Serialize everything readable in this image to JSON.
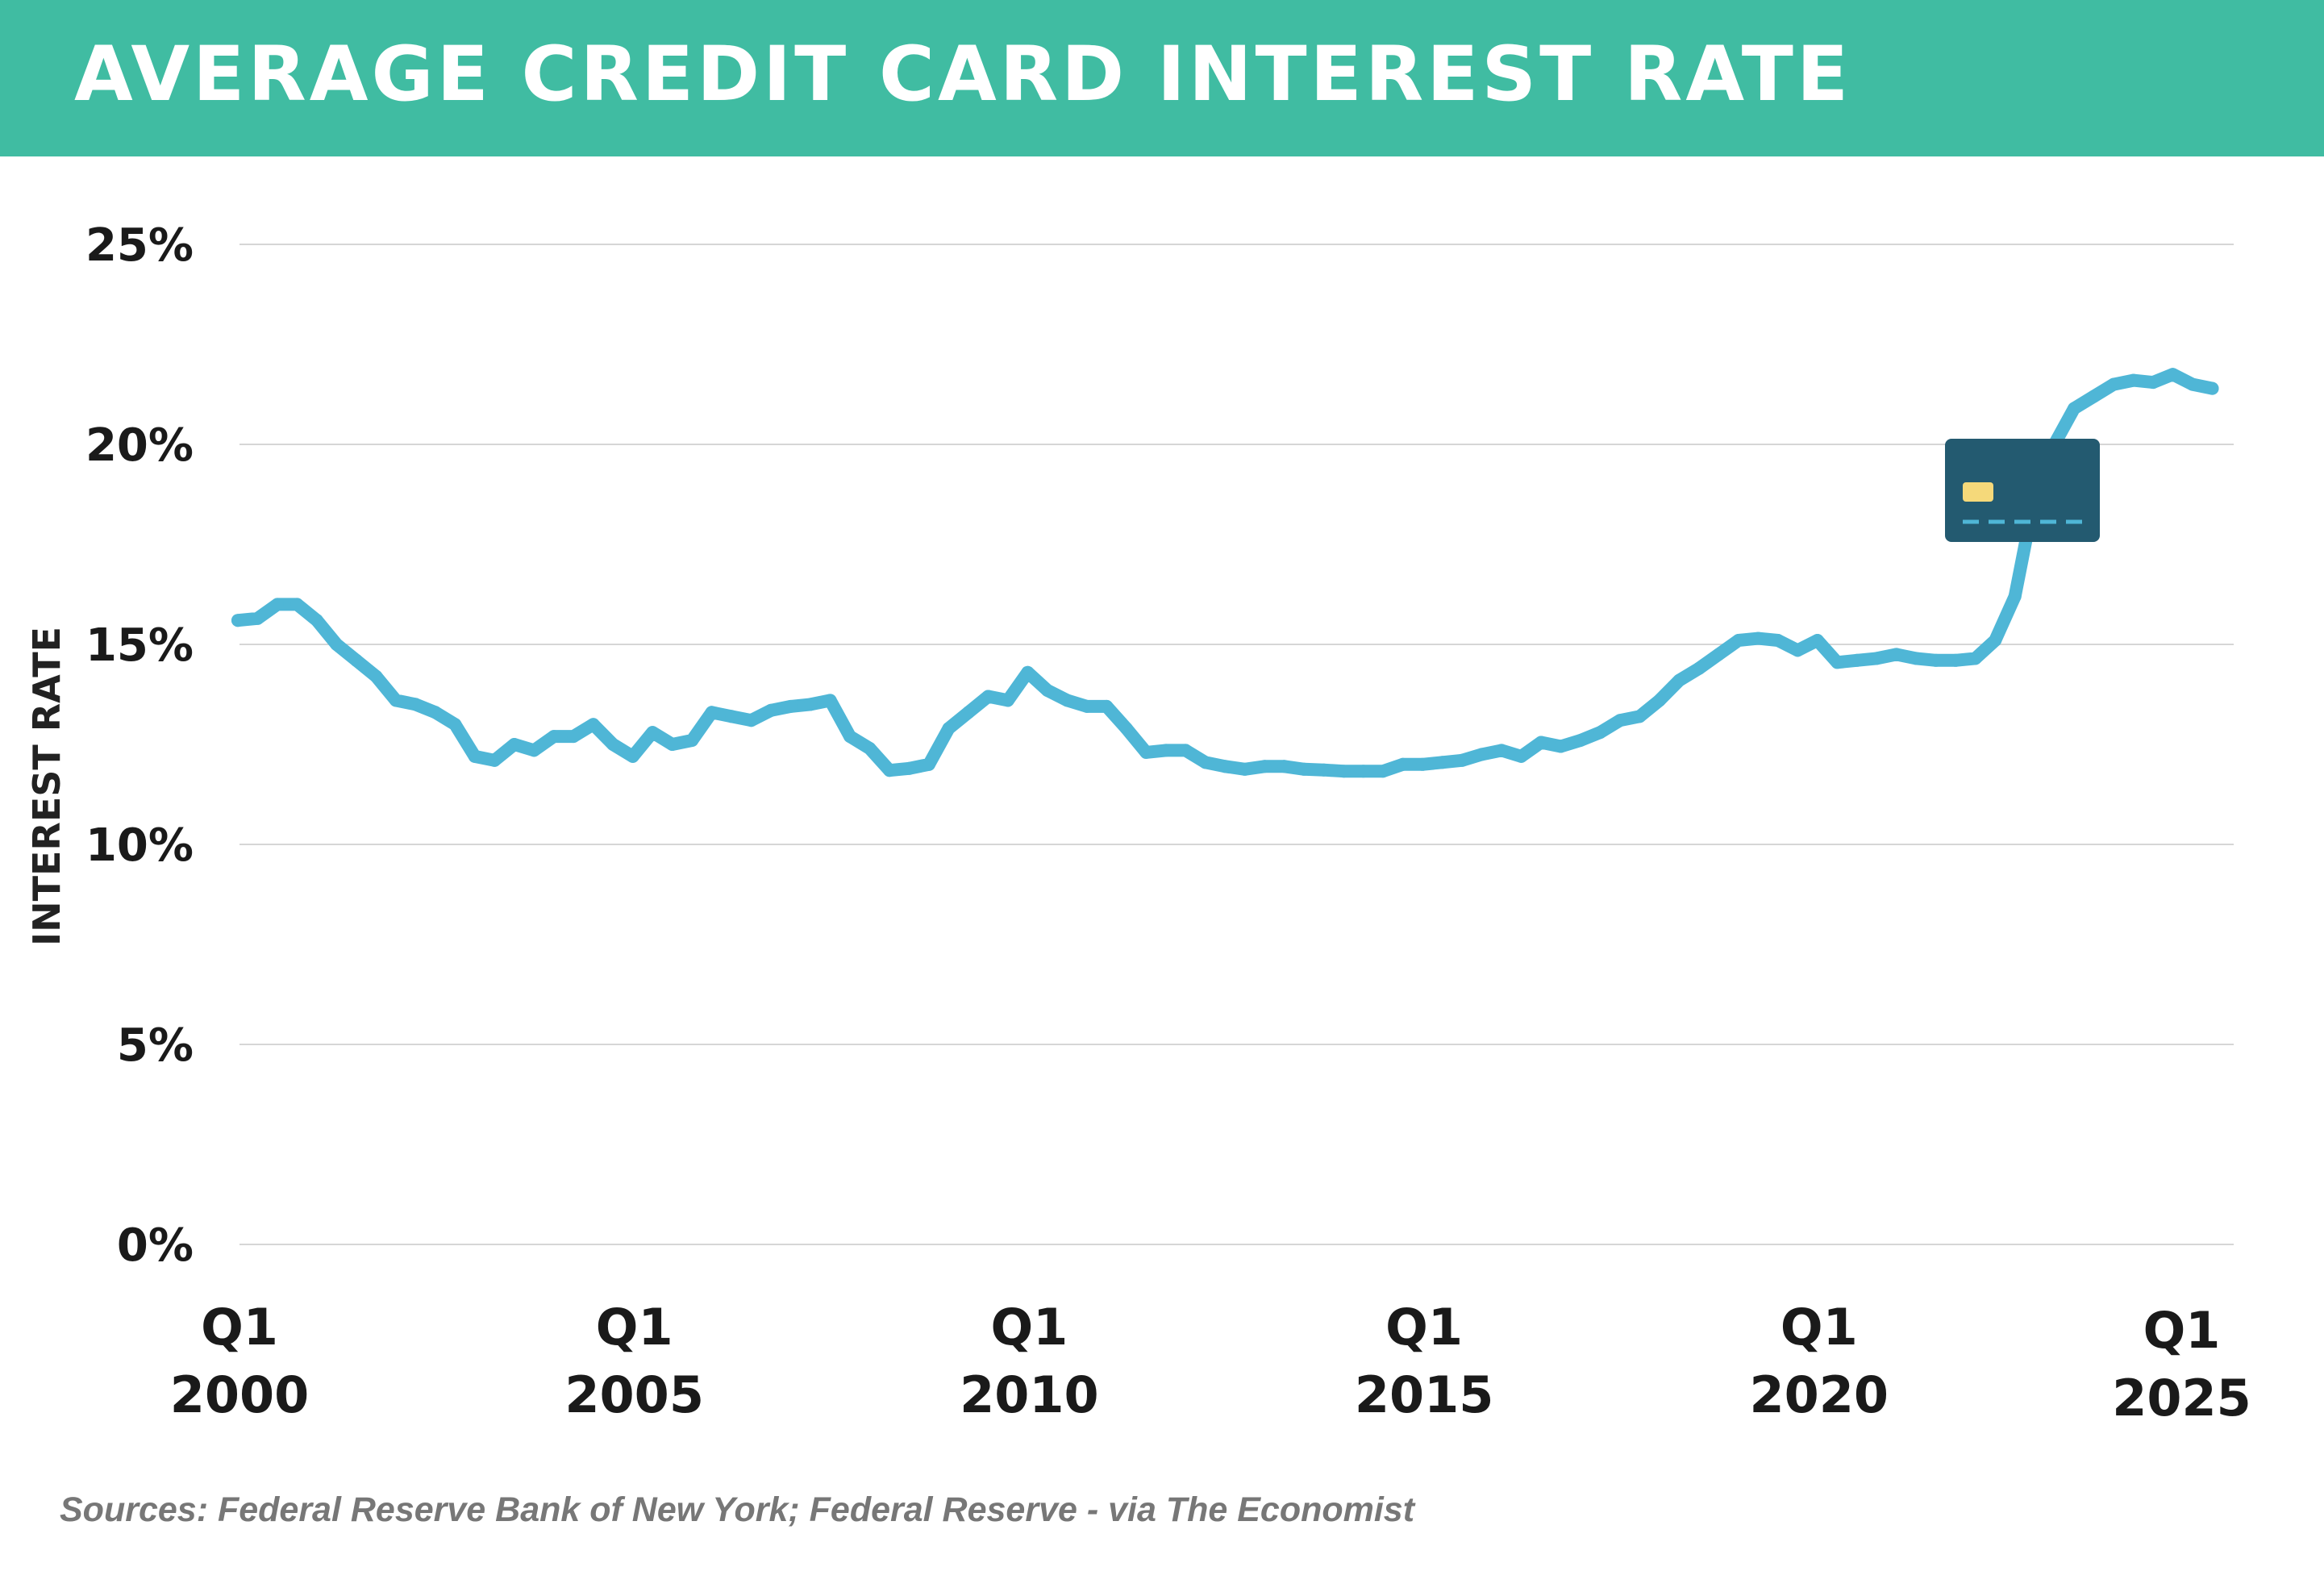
{
  "header": {
    "title": "AVERAGE CREDIT CARD INTEREST RATE"
  },
  "footer": {
    "source": "Sources: Federal Reserve Bank of New York; Federal Reserve - via The Economist"
  },
  "icons": {
    "card": "credit-card-icon"
  },
  "colors": {
    "banner": "#40bca2",
    "line": "#4fb6d6",
    "card_body": "#235a70",
    "card_chip": "#f5d97a",
    "card_stripe": "#4fb6d6",
    "grid": "#d6d6d6"
  },
  "chart_data": {
    "type": "line",
    "title": "AVERAGE CREDIT CARD INTEREST RATE",
    "ylabel": "INTEREST RATE",
    "xlabel": "",
    "ylim": [
      0,
      25
    ],
    "xlim": [
      2000.0,
      2025.25
    ],
    "grid": true,
    "y_ticks": [
      "0%",
      "5%",
      "10%",
      "15%",
      "20%",
      "25%"
    ],
    "y_tick_values": [
      0,
      5,
      10,
      15,
      20,
      25
    ],
    "x_ticks": [
      {
        "line1": "Q1",
        "line2": "2000",
        "value": 2000.0
      },
      {
        "line1": "Q1",
        "line2": "2005",
        "value": 2005.0
      },
      {
        "line1": "Q1",
        "line2": "2010",
        "value": 2010.0
      },
      {
        "line1": "Q1",
        "line2": "2015",
        "value": 2015.0
      },
      {
        "line1": "Q1",
        "line2": "2020",
        "value": 2020.0
      },
      {
        "line1": "Q1",
        "line2": "2025",
        "value": 2025.0
      }
    ],
    "series": [
      {
        "x": [
          2000.0,
          2000.25,
          2000.5,
          2000.75,
          2001.0,
          2001.25,
          2001.5,
          2001.75,
          2002.0,
          2002.25,
          2002.5,
          2002.75,
          2003.0,
          2003.25,
          2003.5,
          2003.75,
          2004.0,
          2004.25,
          2004.5,
          2004.75,
          2005.0,
          2005.25,
          2005.5,
          2005.75,
          2006.0,
          2006.25,
          2006.5,
          2006.75,
          2007.0,
          2007.25,
          2007.5,
          2007.75,
          2008.0,
          2008.25,
          2008.5,
          2008.75,
          2009.0,
          2009.25,
          2009.5,
          2009.75,
          2010.0,
          2010.25,
          2010.5,
          2010.75,
          2011.0,
          2011.25,
          2011.5,
          2011.75,
          2012.0,
          2012.25,
          2012.5,
          2012.75,
          2013.0,
          2013.25,
          2013.5,
          2013.75,
          2014.0,
          2014.25,
          2014.5,
          2014.75,
          2015.0,
          2015.25,
          2015.5,
          2015.75,
          2016.0,
          2016.25,
          2016.5,
          2016.75,
          2017.0,
          2017.25,
          2017.5,
          2017.75,
          2018.0,
          2018.25,
          2018.5,
          2018.75,
          2019.0,
          2019.25,
          2019.5,
          2019.75,
          2020.0,
          2020.25,
          2020.5,
          2020.75,
          2021.0,
          2021.25,
          2021.5,
          2021.75,
          2022.0,
          2022.25,
          2022.5,
          2022.75,
          2023.0,
          2023.25,
          2023.5,
          2023.75,
          2024.0,
          2024.25,
          2024.5,
          2024.75,
          2025.0
        ],
        "y": [
          15.6,
          15.65,
          16.0,
          16.0,
          15.6,
          15.0,
          14.6,
          14.2,
          13.6,
          13.5,
          13.3,
          13.0,
          12.2,
          12.1,
          12.5,
          12.35,
          12.7,
          12.7,
          13.0,
          12.5,
          12.2,
          12.8,
          12.5,
          12.6,
          13.3,
          13.2,
          13.1,
          13.35,
          13.45,
          13.5,
          13.6,
          12.7,
          12.4,
          11.85,
          11.9,
          12.0,
          12.9,
          13.3,
          13.7,
          13.6,
          14.3,
          13.85,
          13.6,
          13.45,
          13.45,
          12.9,
          12.3,
          12.35,
          12.35,
          12.05,
          11.95,
          11.88,
          11.95,
          11.95,
          11.88,
          11.86,
          11.83,
          11.83,
          11.83,
          12.0,
          12.0,
          12.05,
          12.1,
          12.25,
          12.35,
          12.2,
          12.55,
          12.45,
          12.6,
          12.8,
          13.1,
          13.2,
          13.6,
          14.1,
          14.4,
          14.75,
          15.1,
          15.15,
          15.1,
          14.85,
          15.1,
          14.55,
          14.6,
          14.65,
          14.75,
          14.65,
          14.6,
          14.6,
          14.65,
          15.1,
          16.2,
          18.7,
          20.0,
          20.9,
          21.2,
          21.5,
          21.6,
          21.55,
          21.75,
          21.5,
          21.4
        ]
      }
    ]
  }
}
